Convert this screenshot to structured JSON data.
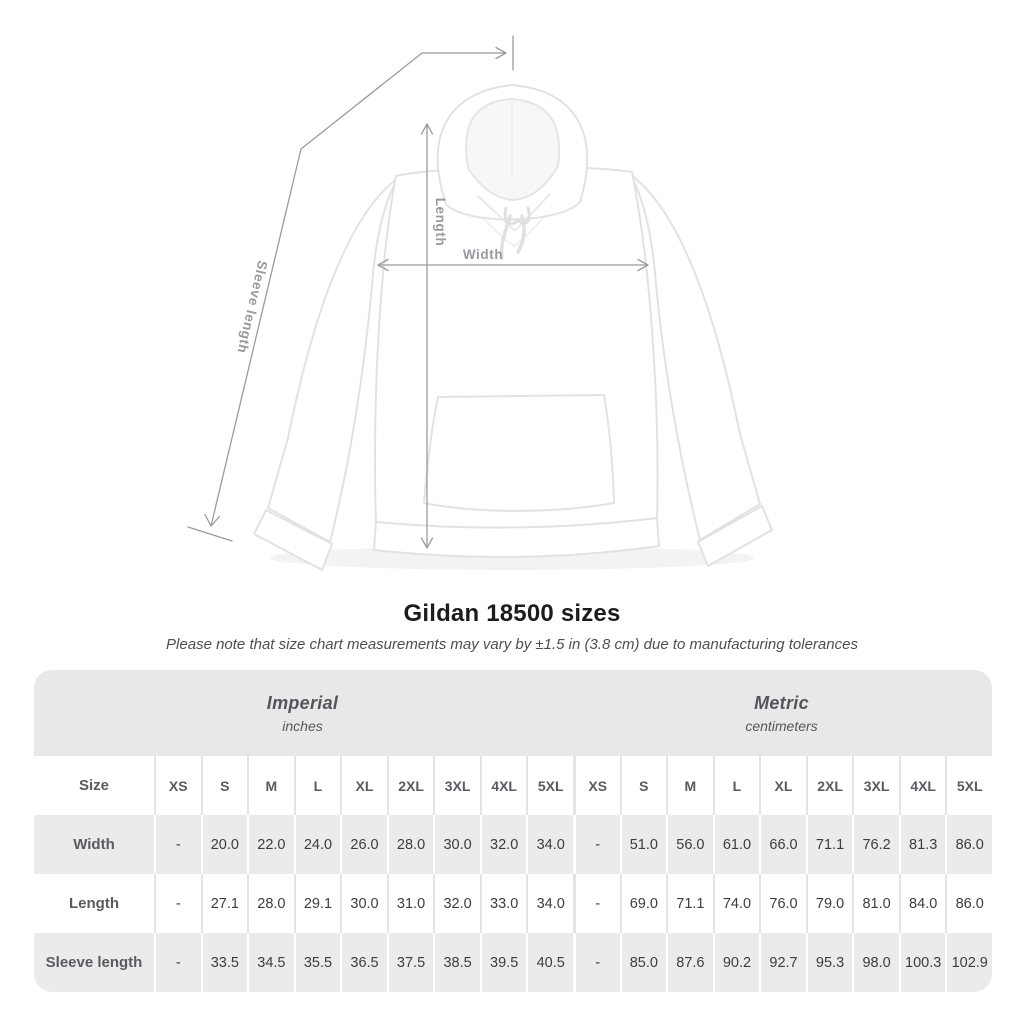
{
  "page": {
    "title": "Gildan 18500 sizes",
    "subtitle": "Please note that size chart measurements may vary by ±1.5 in (3.8 cm) due to manufacturing tolerances"
  },
  "diagram": {
    "product": "white pullover hoodie mockup",
    "width_label": "Width",
    "length_label": "Length",
    "sleeve_label": "Sleeve length",
    "annotation_color": "#97999c"
  },
  "table": {
    "groups": [
      {
        "label": "Imperial",
        "sublabel": "inches"
      },
      {
        "label": "Metric",
        "sublabel": "centimeters"
      }
    ],
    "size_header": "Size",
    "sizes": [
      "XS",
      "S",
      "M",
      "L",
      "XL",
      "2XL",
      "3XL",
      "4XL",
      "5XL"
    ],
    "rows": [
      {
        "label": "Width",
        "imperial": [
          "-",
          "20.0",
          "22.0",
          "24.0",
          "26.0",
          "28.0",
          "30.0",
          "32.0",
          "34.0"
        ],
        "metric": [
          "-",
          "51.0",
          "56.0",
          "61.0",
          "66.0",
          "71.1",
          "76.2",
          "81.3",
          "86.0"
        ]
      },
      {
        "label": "Length",
        "imperial": [
          "-",
          "27.1",
          "28.0",
          "29.1",
          "30.0",
          "31.0",
          "32.0",
          "33.0",
          "34.0"
        ],
        "metric": [
          "-",
          "69.0",
          "71.1",
          "74.0",
          "76.0",
          "79.0",
          "81.0",
          "84.0",
          "86.0"
        ]
      },
      {
        "label": "Sleeve length",
        "imperial": [
          "-",
          "33.5",
          "34.5",
          "35.5",
          "36.5",
          "37.5",
          "38.5",
          "39.5",
          "40.5"
        ],
        "metric": [
          "-",
          "85.0",
          "87.6",
          "90.2",
          "92.7",
          "95.3",
          "98.0",
          "100.3",
          "102.9"
        ]
      }
    ],
    "colors": {
      "group_header_bg": "#e8e8e8",
      "stripe_row_bg": "#ebebeb",
      "separator_light": "#e4e4e4",
      "label_text": "#595b5e",
      "value_text": "#3c3d3f"
    }
  }
}
